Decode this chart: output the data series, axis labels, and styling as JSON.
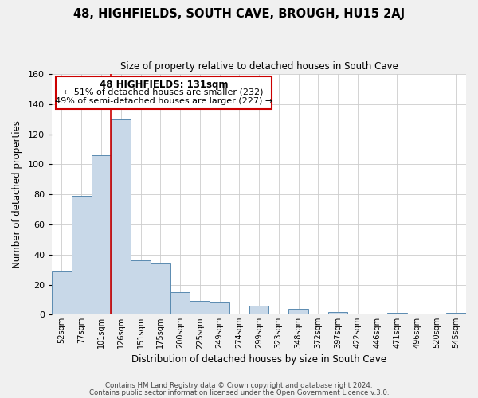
{
  "title": "48, HIGHFIELDS, SOUTH CAVE, BROUGH, HU15 2AJ",
  "subtitle": "Size of property relative to detached houses in South Cave",
  "xlabel": "Distribution of detached houses by size in South Cave",
  "ylabel": "Number of detached properties",
  "bar_color": "#c8d8e8",
  "bar_edge_color": "#5a8ab0",
  "highlight_line_color": "#cc0000",
  "highlight_bar_index": 3,
  "categories": [
    "52sqm",
    "77sqm",
    "101sqm",
    "126sqm",
    "151sqm",
    "175sqm",
    "200sqm",
    "225sqm",
    "249sqm",
    "274sqm",
    "299sqm",
    "323sqm",
    "348sqm",
    "372sqm",
    "397sqm",
    "422sqm",
    "446sqm",
    "471sqm",
    "496sqm",
    "520sqm",
    "545sqm"
  ],
  "values": [
    29,
    79,
    106,
    130,
    36,
    34,
    15,
    9,
    8,
    0,
    6,
    0,
    4,
    0,
    2,
    0,
    0,
    1,
    0,
    0,
    1
  ],
  "ylim": [
    0,
    160
  ],
  "yticks": [
    0,
    20,
    40,
    60,
    80,
    100,
    120,
    140,
    160
  ],
  "annotation_title": "48 HIGHFIELDS: 131sqm",
  "annotation_line1": "← 51% of detached houses are smaller (232)",
  "annotation_line2": "49% of semi-detached houses are larger (227) →",
  "footer_line1": "Contains HM Land Registry data © Crown copyright and database right 2024.",
  "footer_line2": "Contains public sector information licensed under the Open Government Licence v.3.0.",
  "background_color": "#f0f0f0",
  "plot_background_color": "#ffffff",
  "grid_color": "#cccccc",
  "annotation_box_edge_color": "#cc0000",
  "title_fontsize": 10.5,
  "subtitle_fontsize": 8.5
}
